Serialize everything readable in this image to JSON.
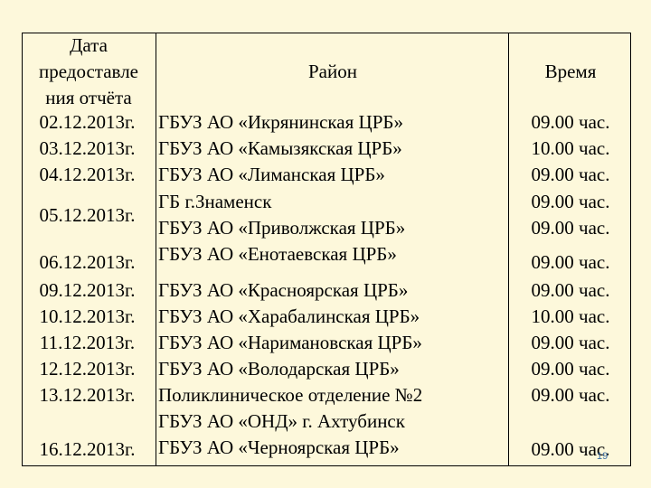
{
  "header": {
    "date_lines": [
      "Дата",
      "предоставле",
      "ния отчёта"
    ],
    "district": "Район",
    "time": "Время"
  },
  "rows": [
    {
      "date": "02.12.2013г.",
      "district": [
        "ГБУЗ АО «Икрянинская ЦРБ»"
      ],
      "time": [
        "09.00 час."
      ]
    },
    {
      "date": "03.12.2013г.",
      "district": [
        "ГБУЗ АО «Камызякская ЦРБ»"
      ],
      "time": [
        "10.00 час."
      ]
    },
    {
      "date": "04.12.2013г.",
      "district": [
        "ГБУЗ АО  «Лиманская ЦРБ»"
      ],
      "time": [
        "09.00 час."
      ]
    },
    {
      "date": "05.12.2013г.",
      "district": [
        "ГБ  г.Знаменск",
        "ГБУЗ АО «Приволжская ЦРБ»"
      ],
      "time": [
        "09.00 час.",
        "09.00 час."
      ]
    },
    {
      "date": "06.12.2013г.",
      "district": [
        "ГБУЗ АО «Енотаевская ЦРБ»"
      ],
      "time": [
        "09.00 час."
      ]
    },
    {
      "date": "09.12.2013г.",
      "district": [
        "ГБУЗ АО «Красноярская ЦРБ»"
      ],
      "time": [
        "09.00 час."
      ]
    },
    {
      "date": "10.12.2013г.",
      "district": [
        "ГБУЗ АО «Харабалинская ЦРБ»"
      ],
      "time": [
        "10.00 час."
      ]
    },
    {
      "date": "11.12.2013г.",
      "district": [
        "ГБУЗ АО «Наримановская ЦРБ»"
      ],
      "time": [
        "09.00 час."
      ]
    },
    {
      "date": "12.12.2013г.",
      "district": [
        "ГБУЗ АО «Володарская ЦРБ»"
      ],
      "time": [
        "09.00 час."
      ]
    },
    {
      "date": "13.12.2013г.",
      "district": [
        "Поликлиническое отделение №2",
        "ГБУЗ АО «ОНД» г. Ахтубинск"
      ],
      "time": [
        "09.00 час."
      ]
    },
    {
      "date": "16.12.2013г.",
      "district": [
        "ГБУЗ АО «Черноярская ЦРБ»"
      ],
      "time": [
        "09.00 час."
      ]
    }
  ],
  "slide_number": "19"
}
